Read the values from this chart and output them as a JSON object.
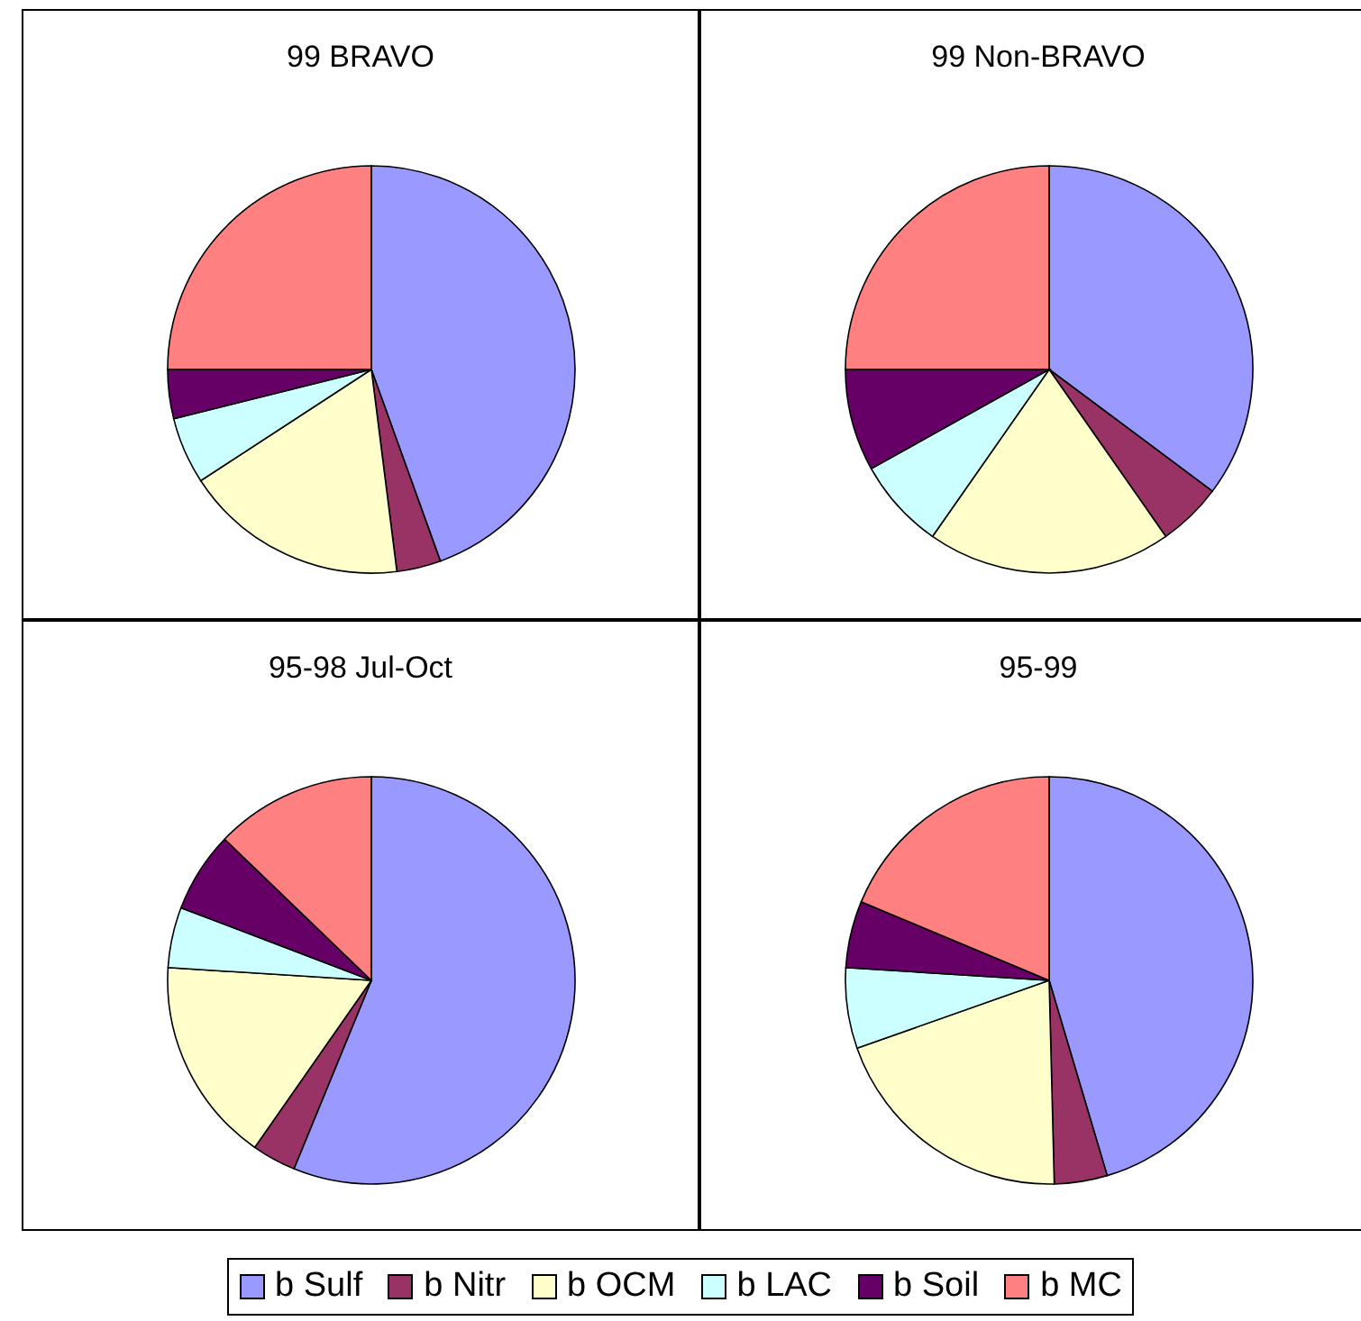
{
  "chart_data": [
    {
      "type": "pie",
      "title": "99 BRAVO",
      "categories": [
        "b Sulf",
        "b Nitr",
        "b OCM",
        "b LAC",
        "b Soil",
        "b MC"
      ],
      "values": [
        44.5,
        3.5,
        17.8,
        5.3,
        3.9,
        25
      ],
      "colors": [
        "#9999ff",
        "#993366",
        "#ffffcc",
        "#ccffff",
        "#660066",
        "#ff8080"
      ],
      "legend": "bottom"
    },
    {
      "type": "pie",
      "title": "99 Non-BRAVO",
      "categories": [
        null,
        null,
        null,
        null,
        null,
        null
      ],
      "values": [
        35.2,
        5.1,
        19.4,
        7.2,
        8.1,
        25
      ],
      "colors": [
        "#9999ff",
        "#993366",
        "#ffffcc",
        "#ccffff",
        "#660066",
        "#ff8080"
      ]
    },
    {
      "type": "pie",
      "title": "95-98 Jul-Oct",
      "categories": [
        null,
        null,
        null,
        null,
        null,
        null
      ],
      "values": [
        56.2,
        3.5,
        16.3,
        4.8,
        6.4,
        12.8
      ],
      "colors": [
        "#9999ff",
        "#993366",
        "#ffffcc",
        "#ccffff",
        "#660066",
        "#ff8080"
      ]
    },
    {
      "type": "pie",
      "title": "95-99",
      "categories": [
        null,
        null,
        null,
        null,
        null,
        null
      ],
      "values": [
        45.4,
        4.2,
        20,
        6.4,
        5.3,
        18.7
      ],
      "colors": [
        "#9999ff",
        "#993366",
        "#ffffcc",
        "#ccffff",
        "#660066",
        "#ff8080"
      ]
    }
  ]
}
